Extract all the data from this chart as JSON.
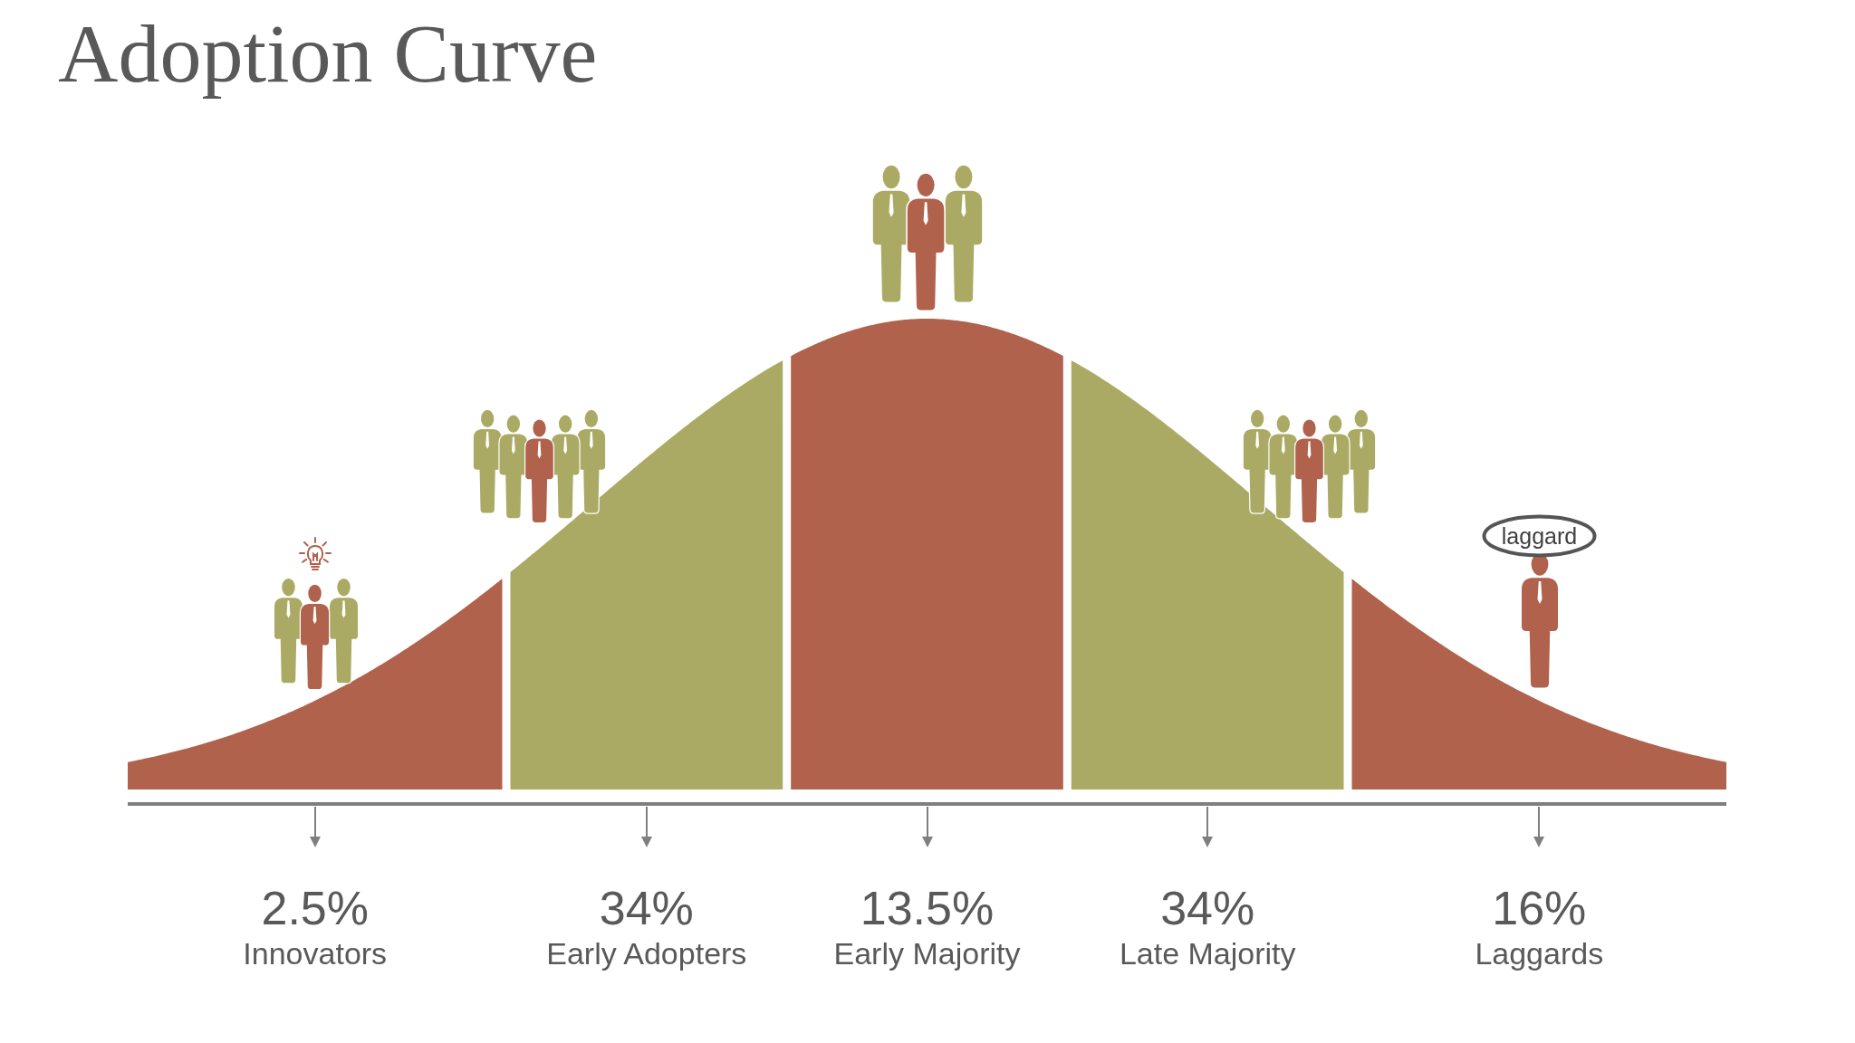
{
  "chart_data": {
    "type": "other",
    "title": "Adoption Curve",
    "categories": [
      "Innovators",
      "Early Adopters",
      "Early Majority",
      "Late Majority",
      "Laggards"
    ],
    "values": [
      2.5,
      34,
      13.5,
      34,
      16
    ],
    "value_labels": [
      "2.5%",
      "34%",
      "13.5%",
      "34%",
      "16%"
    ],
    "colors": [
      "#b0624c",
      "#abaa65",
      "#b0624c",
      "#abaa65",
      "#b0624c"
    ],
    "annotations": [
      "laggard"
    ]
  }
}
